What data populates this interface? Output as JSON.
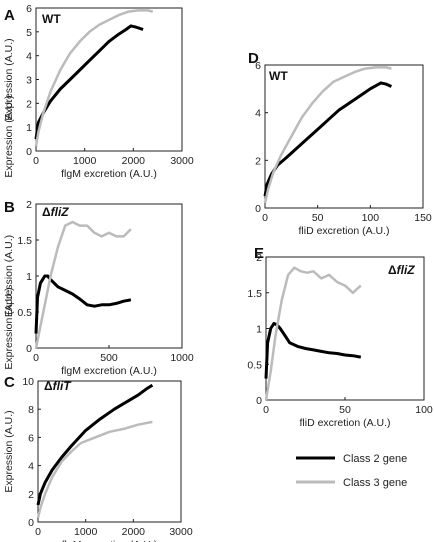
{
  "colors": {
    "class2": "#000000",
    "class3": "#bbbbbb"
  },
  "legend": {
    "items": [
      "Class 2 gene",
      "Class 3 gene"
    ]
  },
  "chart_data": [
    {
      "id": "A",
      "letter": "A",
      "label": "WT",
      "label_prefix": "",
      "label_italic": "",
      "type": "line",
      "xlabel": "flgM excretion (A.U.)",
      "ylabel": "Expression (A.U.)",
      "xlim": [
        0,
        3000
      ],
      "ylim": [
        0,
        6
      ],
      "xticks": [
        "0",
        "1000",
        "2000",
        "3000"
      ],
      "yticks": [
        "0",
        "1",
        "2",
        "3",
        "4",
        "5",
        "6"
      ],
      "xtick_values": [
        0,
        1000,
        2000,
        3000
      ],
      "ytick_values": [
        0,
        1,
        2,
        3,
        4,
        5,
        6
      ],
      "series": [
        {
          "x": [
            0,
            50,
            150,
            300,
            500,
            700,
            900,
            1100,
            1300,
            1500,
            1700,
            1850,
            1950,
            2050,
            2200
          ],
          "y": [
            0.5,
            1.2,
            1.6,
            2.1,
            2.6,
            3.0,
            3.4,
            3.8,
            4.2,
            4.6,
            4.9,
            5.1,
            5.25,
            5.2,
            5.1
          ]
        },
        {
          "x": [
            0,
            50,
            150,
            300,
            500,
            700,
            900,
            1100,
            1300,
            1500,
            1700,
            1900,
            2100,
            2300,
            2400
          ],
          "y": [
            0.2,
            0.8,
            1.6,
            2.5,
            3.4,
            4.1,
            4.6,
            5.0,
            5.3,
            5.5,
            5.7,
            5.85,
            5.9,
            5.9,
            5.85
          ]
        }
      ]
    },
    {
      "id": "B",
      "letter": "B",
      "label": "",
      "label_prefix": "Δ",
      "label_italic": "fliZ",
      "type": "line",
      "xlabel": "flgM excretion (A.U.)",
      "ylabel": "Expression (A.U.)",
      "xlim": [
        0,
        1000
      ],
      "ylim": [
        0,
        2
      ],
      "xticks": [
        "0",
        "500",
        "1000"
      ],
      "yticks": [
        "0",
        "0.5",
        "1",
        "1.5",
        "2"
      ],
      "xtick_values": [
        0,
        500,
        1000
      ],
      "ytick_values": [
        0,
        0.5,
        1,
        1.5,
        2
      ],
      "series": [
        {
          "x": [
            0,
            10,
            30,
            60,
            80,
            100,
            150,
            200,
            250,
            300,
            350,
            400,
            450,
            500,
            550,
            600,
            650
          ],
          "y": [
            0.2,
            0.7,
            0.9,
            1.0,
            1.0,
            0.95,
            0.85,
            0.8,
            0.75,
            0.68,
            0.6,
            0.58,
            0.6,
            0.6,
            0.62,
            0.65,
            0.67
          ]
        },
        {
          "x": [
            0,
            30,
            60,
            100,
            150,
            200,
            250,
            280,
            300,
            350,
            400,
            450,
            500,
            550,
            600,
            650
          ],
          "y": [
            0.0,
            0.3,
            0.6,
            1.0,
            1.4,
            1.7,
            1.75,
            1.72,
            1.7,
            1.7,
            1.6,
            1.55,
            1.6,
            1.55,
            1.55,
            1.65
          ]
        }
      ]
    },
    {
      "id": "C",
      "letter": "C",
      "label": "",
      "label_prefix": "Δ",
      "label_italic": "fliT",
      "type": "line",
      "xlabel": "flgM excretion (A.U.)",
      "ylabel": "Expression (A.U.)",
      "xlim": [
        0,
        3000
      ],
      "ylim": [
        0,
        10
      ],
      "xticks": [
        "0",
        "1000",
        "2000",
        "3000"
      ],
      "yticks": [
        "0",
        "2",
        "4",
        "6",
        "8",
        "10"
      ],
      "xtick_values": [
        0,
        1000,
        2000,
        3000
      ],
      "ytick_values": [
        0,
        2,
        4,
        6,
        8,
        10
      ],
      "series": [
        {
          "x": [
            0,
            50,
            150,
            300,
            500,
            700,
            1000,
            1300,
            1600,
            1900,
            2100,
            2300,
            2400
          ],
          "y": [
            1.2,
            2.0,
            2.8,
            3.7,
            4.6,
            5.4,
            6.5,
            7.3,
            8.0,
            8.6,
            9.0,
            9.5,
            9.7
          ]
        },
        {
          "x": [
            0,
            50,
            150,
            300,
            500,
            700,
            900,
            1200,
            1500,
            1800,
            2100,
            2400
          ],
          "y": [
            0.3,
            1.0,
            2.0,
            3.2,
            4.3,
            5.0,
            5.6,
            6.0,
            6.4,
            6.6,
            6.9,
            7.1
          ]
        }
      ]
    },
    {
      "id": "D",
      "letter": "D",
      "label": "WT",
      "label_prefix": "",
      "label_italic": "",
      "type": "line",
      "xlabel": "fliD excretion (A.U.)",
      "ylabel": "Expression (A.U.)",
      "xlim": [
        0,
        150
      ],
      "ylim": [
        0,
        6
      ],
      "xticks": [
        "0",
        "50",
        "100",
        "150"
      ],
      "yticks": [
        "0",
        "2",
        "4",
        "6"
      ],
      "xtick_values": [
        0,
        50,
        100,
        150
      ],
      "ytick_values": [
        0,
        2,
        4,
        6
      ],
      "series": [
        {
          "x": [
            0,
            2,
            6,
            12,
            20,
            30,
            40,
            50,
            60,
            70,
            80,
            90,
            100,
            110,
            115,
            120
          ],
          "y": [
            0.5,
            1.0,
            1.4,
            1.8,
            2.1,
            2.5,
            2.9,
            3.3,
            3.7,
            4.1,
            4.4,
            4.7,
            5.0,
            5.25,
            5.2,
            5.1
          ]
        },
        {
          "x": [
            0,
            3,
            8,
            15,
            25,
            35,
            45,
            55,
            65,
            75,
            85,
            95,
            105,
            115,
            120
          ],
          "y": [
            0.2,
            0.8,
            1.5,
            2.2,
            3.0,
            3.8,
            4.4,
            4.9,
            5.3,
            5.5,
            5.7,
            5.85,
            5.9,
            5.9,
            5.85
          ]
        }
      ]
    },
    {
      "id": "E",
      "letter": "E",
      "label": "",
      "label_prefix": "Δ",
      "label_italic": "fliZ",
      "type": "line",
      "xlabel": "fliD excretion (A.U.)",
      "ylabel": "Expression (A.U.)",
      "xlim": [
        0,
        100
      ],
      "ylim": [
        0,
        2
      ],
      "xticks": [
        "0",
        "50",
        "100"
      ],
      "yticks": [
        "0",
        "0.5",
        "1",
        "1.5",
        "2"
      ],
      "xtick_values": [
        0,
        50,
        100
      ],
      "ytick_values": [
        0,
        0.5,
        1,
        1.5,
        2
      ],
      "series": [
        {
          "x": [
            0,
            1,
            3,
            5,
            7,
            9,
            12,
            15,
            20,
            25,
            30,
            35,
            40,
            45,
            50,
            55,
            60
          ],
          "y": [
            0.3,
            0.8,
            1.0,
            1.07,
            1.05,
            1.0,
            0.9,
            0.8,
            0.75,
            0.72,
            0.7,
            0.68,
            0.66,
            0.65,
            0.63,
            0.62,
            0.6
          ]
        },
        {
          "x": [
            0,
            3,
            6,
            10,
            14,
            18,
            22,
            26,
            30,
            35,
            40,
            45,
            50,
            55,
            60
          ],
          "y": [
            0.0,
            0.4,
            0.9,
            1.4,
            1.75,
            1.85,
            1.8,
            1.78,
            1.8,
            1.7,
            1.75,
            1.65,
            1.6,
            1.5,
            1.6
          ]
        }
      ]
    }
  ]
}
